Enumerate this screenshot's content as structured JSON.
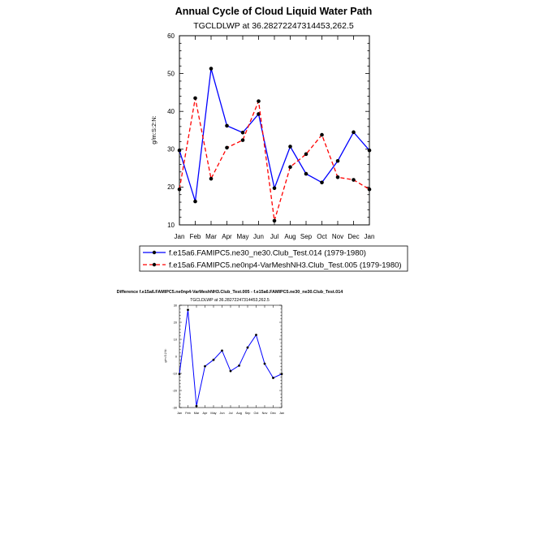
{
  "colors": {
    "series1": "#0000ff",
    "series2": "#ff0000",
    "marker": "#000000",
    "axis": "#000000",
    "background": "#ffffff"
  },
  "chart_data": [
    {
      "type": "line",
      "title": "Annual Cycle of Cloud Liquid Water Path",
      "subtitle": "TGCLDLWP at 36.28272247314453,262.5",
      "ylabel": "g/m:S:2:N:",
      "xlabel": "",
      "categories": [
        "Jan",
        "Feb",
        "Mar",
        "Apr",
        "May",
        "Jun",
        "Jul",
        "Aug",
        "Sep",
        "Oct",
        "Nov",
        "Dec",
        "Jan"
      ],
      "ylim": [
        10,
        60
      ],
      "yticks": [
        10,
        20,
        30,
        40,
        50,
        60
      ],
      "series": [
        {
          "name": "f.e15a6.FAMIPC5.ne30_ne30.Club_Test.014 (1979-1980)",
          "style": "solid",
          "values": [
            29.7,
            16.2,
            51.3,
            36.2,
            34.4,
            39.3,
            19.7,
            30.7,
            23.5,
            21.2,
            26.9,
            34.5,
            29.7
          ]
        },
        {
          "name": "f.e15a6.FAMIPC5.ne0np4-VarMeshNH3.Club_Test.005 (1979-1980)",
          "style": "dashed",
          "values": [
            19.4,
            43.5,
            22.2,
            30.4,
            32.4,
            42.7,
            11.1,
            25.3,
            28.7,
            33.8,
            22.6,
            21.9,
            19.4
          ]
        }
      ],
      "legend": "bottom"
    },
    {
      "type": "line",
      "title": "Difference f.e15a6.FAMIPC5.ne0np4-VarMeshNH3.Club_Test.005 - f.e15a6.FAMIPC5.ne30_ne30.Club_Test.014",
      "subtitle": "TGCLDLWP at 36.28272247314453,262.5",
      "ylabel": "g/m:S:2:N:",
      "xlabel": "",
      "categories": [
        "Jan",
        "Feb",
        "Mar",
        "Apr",
        "May",
        "Jun",
        "Jul",
        "Aug",
        "Sep",
        "Oct",
        "Nov",
        "Dec",
        "Jan"
      ],
      "ylim": [
        -30,
        30
      ],
      "yticks": [
        -30,
        -20,
        -10,
        0,
        10,
        20,
        30
      ],
      "series": [
        {
          "name": "Difference",
          "style": "solid",
          "values": [
            -10.3,
            27.3,
            -29.1,
            -5.8,
            -2.0,
            3.4,
            -8.6,
            -5.4,
            5.2,
            12.6,
            -4.3,
            -12.6,
            -10.3
          ]
        }
      ]
    }
  ]
}
